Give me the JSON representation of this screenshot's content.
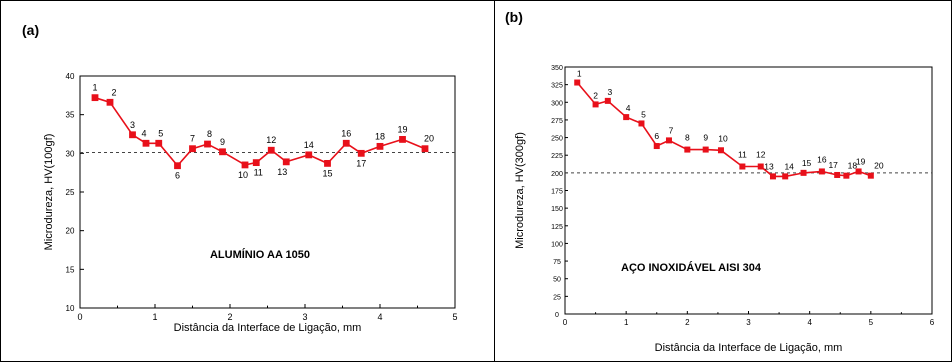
{
  "chart_data": [
    {
      "type": "line",
      "panel_tag": "(a)",
      "annotation": "ALUMÍNIO AA 1050",
      "xlabel": "Distância da Interface de Ligação, mm",
      "ylabel": "Microdureza, HV(100gf)",
      "xlim": [
        0,
        5
      ],
      "ylim": [
        10,
        40
      ],
      "xticks": [
        0,
        1,
        2,
        3,
        4,
        5
      ],
      "yticks": [
        10,
        15,
        20,
        25,
        30,
        35,
        40
      ],
      "reference_line": 30.1,
      "color": "#e8101a",
      "x": [
        0.2,
        0.4,
        0.7,
        0.88,
        1.05,
        1.3,
        1.5,
        1.7,
        1.9,
        2.2,
        2.35,
        2.55,
        2.75,
        3.05,
        3.3,
        3.55,
        3.75,
        4.0,
        4.3,
        4.6
      ],
      "y": [
        37.2,
        36.6,
        32.4,
        31.3,
        31.3,
        28.4,
        30.6,
        31.2,
        30.2,
        28.5,
        28.8,
        30.4,
        28.9,
        29.8,
        28.7,
        31.3,
        30.0,
        30.9,
        31.8,
        30.6
      ],
      "point_labels": [
        "1",
        "2",
        "3",
        "4",
        "5",
        "6",
        "7",
        "8",
        "9",
        "10",
        "11",
        "12",
        "13",
        "14",
        "15",
        "16",
        "17",
        "18",
        "19",
        "20"
      ]
    },
    {
      "type": "line",
      "panel_tag": "(b)",
      "annotation": "AÇO INOXIDÁVEL AISI 304",
      "xlabel": "Distância da Interface de Ligação, mm",
      "ylabel": "Microdureza, HV(300gf)",
      "xlim": [
        0,
        6
      ],
      "ylim": [
        0,
        350
      ],
      "xticks": [
        0,
        1,
        2,
        3,
        4,
        5,
        6
      ],
      "yticks": [
        0,
        25,
        50,
        75,
        100,
        125,
        150,
        175,
        200,
        225,
        250,
        275,
        300,
        325,
        350
      ],
      "reference_line": 200,
      "color": "#e8101a",
      "x": [
        0.2,
        0.5,
        0.7,
        1.0,
        1.25,
        1.5,
        1.7,
        2.0,
        2.3,
        2.55,
        2.9,
        3.2,
        3.4,
        3.6,
        3.9,
        4.2,
        4.45,
        4.6,
        4.8,
        5.0
      ],
      "y": [
        328,
        297,
        302,
        279,
        270,
        238,
        246,
        233,
        233,
        232,
        209,
        209,
        195,
        195,
        200,
        202,
        197,
        196,
        202,
        196
      ],
      "point_labels": [
        "1",
        "2",
        "3",
        "4",
        "5",
        "6",
        "7",
        "8",
        "9",
        "10",
        "11",
        "12",
        "13",
        "14",
        "15",
        "16",
        "17",
        "18",
        "19",
        "20"
      ]
    }
  ]
}
